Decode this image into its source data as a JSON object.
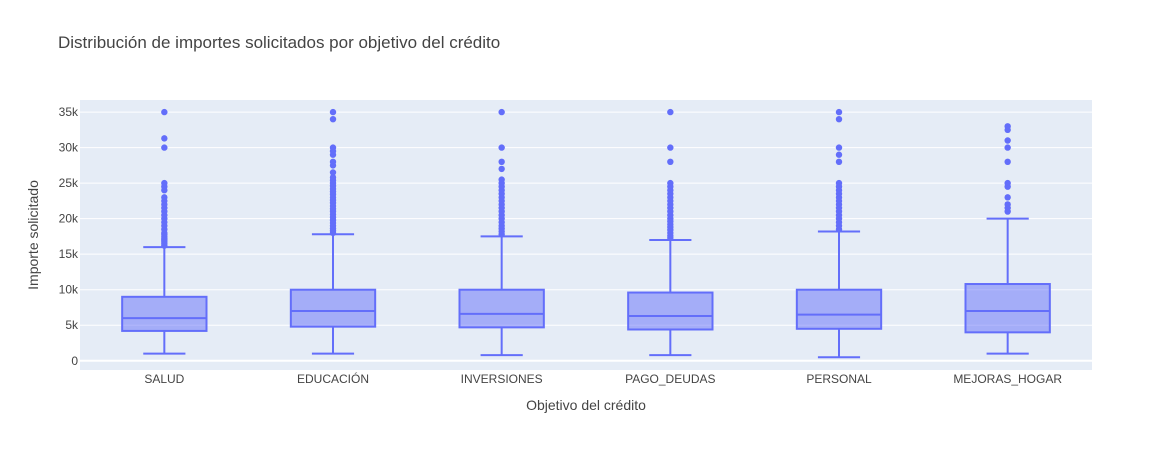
{
  "chart_data": {
    "type": "box",
    "title": "Distribución de importes solicitados por objetivo del crédito",
    "xlabel": "Objetivo del crédito",
    "ylabel": "Importe solicitado",
    "ylim": [
      -1300,
      36700
    ],
    "yticks": [
      0,
      5000,
      10000,
      15000,
      20000,
      25000,
      30000,
      35000
    ],
    "ytick_labels": [
      "0",
      "5k",
      "10k",
      "15k",
      "20k",
      "25k",
      "30k",
      "35k"
    ],
    "grid": true,
    "legend": "none",
    "colors": {
      "plot_bg": "#e5ecf6",
      "grid": "#ffffff",
      "box_line": "#636efa",
      "box_fill": "#636efa",
      "text": "#444444",
      "title": "#444444"
    },
    "categories": [
      "SALUD",
      "EDUCACIÓN",
      "INVERSIONES",
      "PAGO_DEUDAS",
      "PERSONAL",
      "MEJORAS_HOGAR"
    ],
    "boxes": [
      {
        "category": "SALUD",
        "min": 1000,
        "q1": 4200,
        "median": 6000,
        "q3": 9000,
        "max": 16000,
        "outliers": [
          16200,
          16500,
          16800,
          17000,
          17200,
          17500,
          17800,
          18000,
          18500,
          19000,
          19500,
          20000,
          20500,
          21000,
          21500,
          22000,
          22500,
          23000,
          24000,
          24500,
          25000,
          30000,
          31300,
          35000
        ]
      },
      {
        "category": "EDUCACIÓN",
        "min": 1000,
        "q1": 4800,
        "median": 7000,
        "q3": 10000,
        "max": 17800,
        "outliers": [
          18000,
          18300,
          18600,
          19000,
          19400,
          19800,
          20200,
          20600,
          21000,
          21400,
          21800,
          22200,
          22600,
          23000,
          23400,
          23800,
          24200,
          24600,
          25000,
          25400,
          25800,
          26500,
          27500,
          28000,
          29000,
          29500,
          30000,
          34000,
          35000
        ]
      },
      {
        "category": "INVERSIONES",
        "min": 800,
        "q1": 4700,
        "median": 6600,
        "q3": 10000,
        "max": 17500,
        "outliers": [
          17800,
          18200,
          18600,
          19000,
          19500,
          20000,
          20500,
          21000,
          21500,
          22000,
          22500,
          23000,
          23500,
          24000,
          24500,
          25000,
          25500,
          27000,
          28000,
          30000,
          35000
        ]
      },
      {
        "category": "PAGO_DEUDAS",
        "min": 800,
        "q1": 4400,
        "median": 6300,
        "q3": 9600,
        "max": 17000,
        "outliers": [
          17300,
          17600,
          18000,
          18400,
          18800,
          19200,
          19600,
          20000,
          20500,
          21000,
          21500,
          22000,
          22500,
          23000,
          23500,
          24000,
          24500,
          25000,
          28000,
          30000,
          35000
        ]
      },
      {
        "category": "PERSONAL",
        "min": 500,
        "q1": 4500,
        "median": 6500,
        "q3": 10000,
        "max": 18200,
        "outliers": [
          18500,
          19000,
          19500,
          20000,
          20500,
          21000,
          21500,
          22000,
          22500,
          23000,
          23500,
          24000,
          24500,
          25000,
          28000,
          29000,
          30000,
          34000,
          35000
        ]
      },
      {
        "category": "MEJORAS_HOGAR",
        "min": 1000,
        "q1": 4000,
        "median": 7000,
        "q3": 10800,
        "max": 20000,
        "outliers": [
          21000,
          21500,
          22000,
          23000,
          24500,
          25000,
          28000,
          30000,
          31000,
          32500,
          33000
        ]
      }
    ]
  }
}
